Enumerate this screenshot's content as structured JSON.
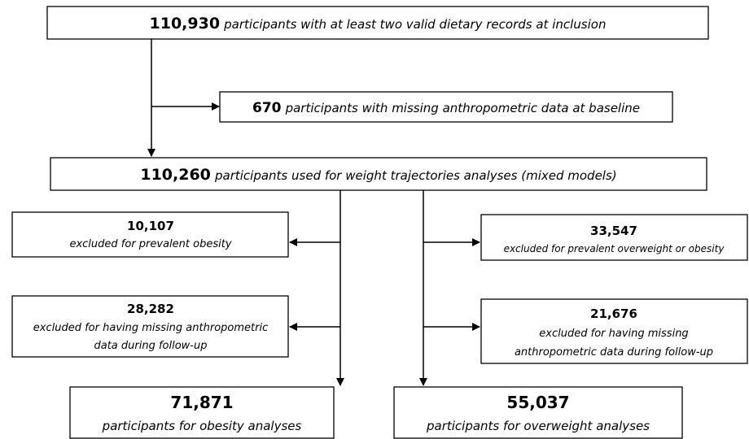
{
  "nodes": [
    {
      "number": "110,930",
      "text": "participants with at least two valid dietary records at inclusion"
    },
    {
      "number": "670",
      "text": "participants with missing anthropometric data at baseline"
    },
    {
      "number": "110,260",
      "text": "participants used for weight trajectories analyses (mixed models)"
    },
    {
      "number": "10,107",
      "lines": [
        "excluded for prevalent obesity"
      ]
    },
    {
      "number": "33,547",
      "lines": [
        "excluded for prevalent overweight or obesity"
      ]
    },
    {
      "number": "28,282",
      "lines": [
        "excluded for having missing anthropometric",
        "data during follow-up"
      ]
    },
    {
      "number": "21,676",
      "lines": [
        "excluded for having missing",
        "anthropometric data during follow-up"
      ]
    },
    {
      "number": "71,871",
      "lines": [
        "participants for obesity analyses"
      ]
    },
    {
      "number": "55,037",
      "lines": [
        "participants for overweight analyses"
      ]
    }
  ]
}
